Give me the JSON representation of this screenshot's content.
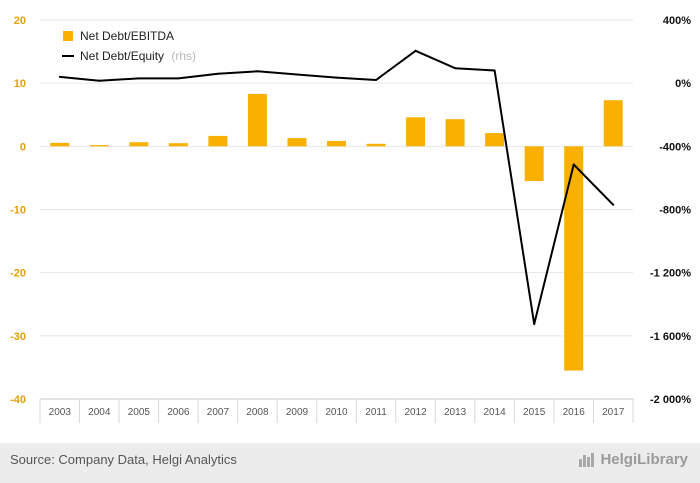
{
  "chart_data": {
    "type": "bar",
    "categories": [
      "2003",
      "2004",
      "2005",
      "2006",
      "2007",
      "2008",
      "2009",
      "2010",
      "2011",
      "2012",
      "2013",
      "2014",
      "2015",
      "2016",
      "2017"
    ],
    "series": [
      {
        "name": "Net Debt/EBITDA",
        "type": "bar",
        "axis": "left",
        "color": "#f9b000",
        "values": [
          0.55,
          0.2,
          0.65,
          0.5,
          1.65,
          8.3,
          1.3,
          0.85,
          0.4,
          4.6,
          4.3,
          2.1,
          -5.5,
          -35.5,
          7.3
        ]
      },
      {
        "name": "Net Debt/Equity",
        "type": "line",
        "axis": "right",
        "color": "#000000",
        "values": [
          40,
          15,
          30,
          30,
          60,
          75,
          55,
          35,
          20,
          205,
          95,
          80,
          -1525,
          -515,
          -770
        ]
      }
    ],
    "rhs_note": "(rhs)",
    "y_left": {
      "min": -40,
      "max": 20,
      "ticks": [
        "20",
        "10",
        "0",
        "-10",
        "-20",
        "-30",
        "-40"
      ]
    },
    "y_right": {
      "min": -2000,
      "max": 400,
      "ticks": [
        "400%",
        "0%",
        "-400%",
        "-800%",
        "-1 200%",
        "-1 600%",
        "-2 000%"
      ]
    },
    "grid": true,
    "legend": "top-left"
  },
  "footer": {
    "source": "Source: Company Data, Helgi Analytics",
    "brand": "HelgiLibrary"
  }
}
